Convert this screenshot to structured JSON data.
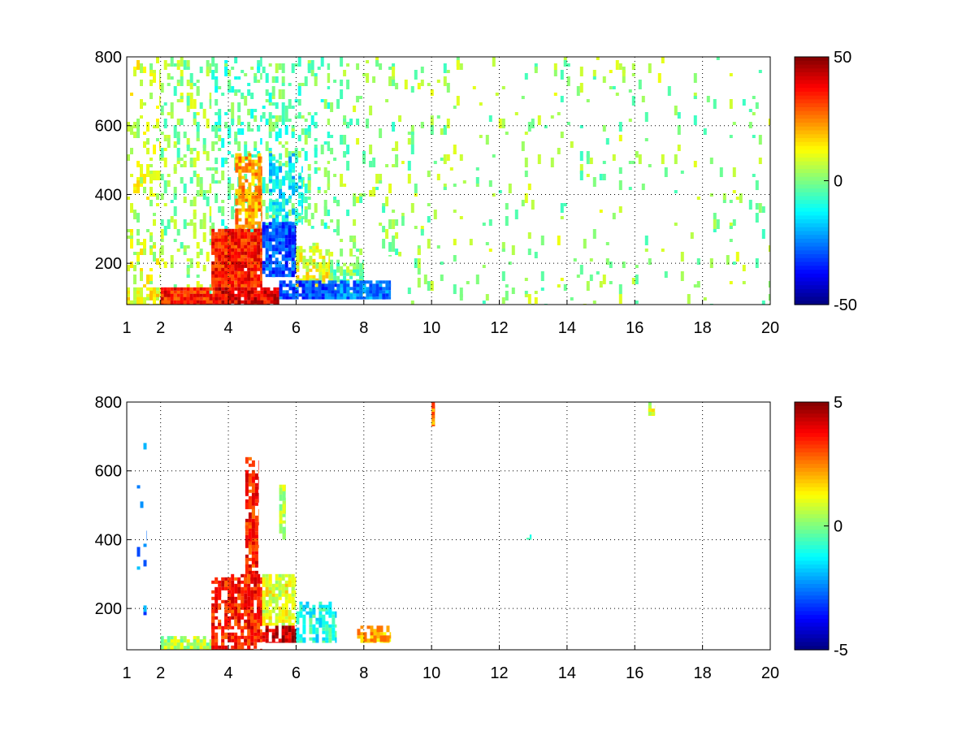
{
  "chart_data": [
    {
      "type": "heatmap",
      "title": "",
      "xlabel": "",
      "ylabel": "",
      "xlim": [
        1,
        20
      ],
      "ylim": [
        80,
        800
      ],
      "x_ticks": [
        1,
        2,
        4,
        6,
        8,
        10,
        12,
        14,
        16,
        18,
        20
      ],
      "x_tick_labels": [
        "1",
        "2",
        "4",
        "6",
        "8",
        "10",
        "12",
        "14",
        "16",
        "18",
        "20"
      ],
      "y_ticks": [
        200,
        400,
        600,
        800
      ],
      "y_tick_labels": [
        "200",
        "400",
        "600",
        "800"
      ],
      "grid": true,
      "colormap": "jet",
      "colorbar": {
        "min": -50,
        "max": 50,
        "ticks": [
          50,
          0,
          -50
        ],
        "tick_labels": [
          "50",
          "0",
          "-50"
        ]
      },
      "regions": [
        {
          "x": [
            1.0,
            2.0
          ],
          "y": [
            80,
            800
          ],
          "value": 8,
          "density": 0.16
        },
        {
          "x": [
            2.0,
            3.5
          ],
          "y": [
            80,
            800
          ],
          "value": 2,
          "density": 0.14
        },
        {
          "x": [
            3.5,
            5.0
          ],
          "y": [
            250,
            800
          ],
          "value": -4,
          "density": 0.18
        },
        {
          "x": [
            4.2,
            5.0
          ],
          "y": [
            300,
            520
          ],
          "value": 22,
          "density": 0.55
        },
        {
          "x": [
            5.0,
            7.0
          ],
          "y": [
            300,
            800
          ],
          "value": -3,
          "density": 0.15
        },
        {
          "x": [
            5.2,
            6.2
          ],
          "y": [
            300,
            520
          ],
          "value": -15,
          "density": 0.3
        },
        {
          "x": [
            7.0,
            9.2
          ],
          "y": [
            220,
            800
          ],
          "value": 1,
          "density": 0.08
        },
        {
          "x": [
            9.2,
            20.0
          ],
          "y": [
            80,
            800
          ],
          "value": 2,
          "density": 0.035
        },
        {
          "x": [
            3.5,
            5.0
          ],
          "y": [
            130,
            300
          ],
          "value": 35,
          "density": 0.9
        },
        {
          "x": [
            5.0,
            6.0
          ],
          "y": [
            160,
            320
          ],
          "value": -30,
          "density": 0.75
        },
        {
          "x": [
            6.0,
            7.0
          ],
          "y": [
            130,
            260
          ],
          "value": 10,
          "density": 0.5
        },
        {
          "x": [
            7.0,
            8.0
          ],
          "y": [
            110,
            220
          ],
          "value": 0,
          "density": 0.4
        },
        {
          "x": [
            2.0,
            3.6
          ],
          "y": [
            80,
            130
          ],
          "value": 35,
          "density": 0.95
        },
        {
          "x": [
            3.6,
            5.5
          ],
          "y": [
            80,
            130
          ],
          "value": 40,
          "density": 0.9
        },
        {
          "x": [
            5.5,
            7.2
          ],
          "y": [
            95,
            150
          ],
          "value": -30,
          "density": 0.8
        },
        {
          "x": [
            7.2,
            8.8
          ],
          "y": [
            95,
            150
          ],
          "value": -25,
          "density": 0.75
        },
        {
          "x": [
            1.0,
            2.0
          ],
          "y": [
            80,
            130
          ],
          "value": 12,
          "density": 0.5
        }
      ]
    },
    {
      "type": "heatmap",
      "title": "",
      "xlabel": "",
      "ylabel": "",
      "xlim": [
        1,
        20
      ],
      "ylim": [
        80,
        800
      ],
      "x_ticks": [
        1,
        2,
        4,
        6,
        8,
        10,
        12,
        14,
        16,
        18,
        20
      ],
      "x_tick_labels": [
        "1",
        "2",
        "4",
        "6",
        "8",
        "10",
        "12",
        "14",
        "16",
        "18",
        "20"
      ],
      "y_ticks": [
        200,
        400,
        600,
        800
      ],
      "y_tick_labels": [
        "200",
        "400",
        "600",
        "800"
      ],
      "grid": true,
      "colormap": "jet",
      "colorbar": {
        "min": -5,
        "max": 5,
        "ticks": [
          5,
          0,
          -5
        ],
        "tick_labels": [
          "5",
          "0",
          "-5"
        ]
      },
      "regions": [
        {
          "x": [
            2.0,
            3.5
          ],
          "y": [
            80,
            120
          ],
          "value": 0.5,
          "density": 0.7
        },
        {
          "x": [
            3.5,
            5.0
          ],
          "y": [
            80,
            300
          ],
          "value": 3.5,
          "density": 0.55
        },
        {
          "x": [
            4.5,
            4.9
          ],
          "y": [
            300,
            640
          ],
          "value": 3.5,
          "density": 0.45
        },
        {
          "x": [
            5.5,
            5.7
          ],
          "y": [
            400,
            560
          ],
          "value": 0.5,
          "density": 0.45
        },
        {
          "x": [
            5.0,
            6.0
          ],
          "y": [
            150,
            300
          ],
          "value": 1.0,
          "density": 0.55
        },
        {
          "x": [
            5.0,
            6.0
          ],
          "y": [
            100,
            150
          ],
          "value": 4.5,
          "density": 0.7
        },
        {
          "x": [
            6.0,
            7.2
          ],
          "y": [
            100,
            220
          ],
          "value": -1.0,
          "density": 0.45
        },
        {
          "x": [
            7.8,
            8.8
          ],
          "y": [
            100,
            150
          ],
          "value": 2.0,
          "density": 0.55
        },
        {
          "x": [
            10.0,
            10.1
          ],
          "y": [
            730,
            800
          ],
          "value": 2.5,
          "density": 0.8
        },
        {
          "x": [
            16.4,
            16.6
          ],
          "y": [
            760,
            800
          ],
          "value": 0.8,
          "density": 0.6
        },
        {
          "x": [
            12.8,
            12.95
          ],
          "y": [
            400,
            415
          ],
          "value": -1.0,
          "density": 0.9
        },
        {
          "x": [
            1.3,
            1.6
          ],
          "y": [
            180,
            700
          ],
          "value": -2.5,
          "density": 0.03
        }
      ]
    }
  ]
}
